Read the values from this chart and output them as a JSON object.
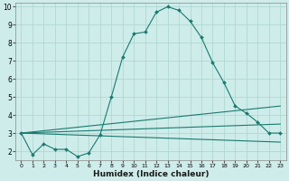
{
  "xlabel": "Humidex (Indice chaleur)",
  "background_color": "#ceecea",
  "grid_color": "#afd8d4",
  "line_color": "#1a7a6e",
  "xlim": [
    -0.5,
    23.5
  ],
  "ylim": [
    1.5,
    10.2
  ],
  "yticks": [
    2,
    3,
    4,
    5,
    6,
    7,
    8,
    9,
    10
  ],
  "xticks": [
    0,
    1,
    2,
    3,
    4,
    5,
    6,
    7,
    8,
    9,
    10,
    11,
    12,
    13,
    14,
    15,
    16,
    17,
    18,
    19,
    20,
    21,
    22,
    23
  ],
  "series_main": {
    "x": [
      0,
      1,
      2,
      3,
      4,
      5,
      6,
      7,
      8,
      9,
      10,
      11,
      12,
      13,
      14,
      15,
      16,
      17,
      18,
      19,
      20,
      21,
      22,
      23
    ],
    "y": [
      3.0,
      1.8,
      2.4,
      2.1,
      2.1,
      1.7,
      1.9,
      2.9,
      5.0,
      7.2,
      8.5,
      8.6,
      9.7,
      10.0,
      9.8,
      9.2,
      8.3,
      6.9,
      5.8,
      4.5,
      4.1,
      3.6,
      3.0,
      3.0
    ]
  },
  "series_flat": [
    {
      "x": [
        0,
        23
      ],
      "y": [
        3.0,
        4.5
      ]
    },
    {
      "x": [
        0,
        23
      ],
      "y": [
        3.0,
        3.5
      ]
    },
    {
      "x": [
        0,
        23
      ],
      "y": [
        3.0,
        2.5
      ]
    }
  ]
}
